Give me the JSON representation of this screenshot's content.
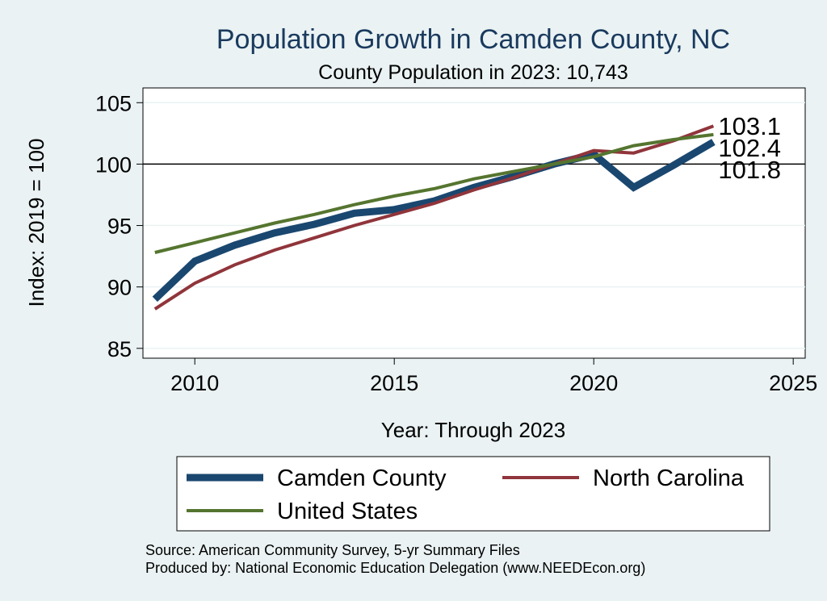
{
  "chart_data": {
    "type": "line",
    "title": "Population Growth in Camden County, NC",
    "subtitle": "County Population in 2023: 10,743",
    "xlabel": "Year: Through 2023",
    "ylabel": "Index: 2019 = 100",
    "xlim": [
      2008.7,
      2025.3
    ],
    "ylim": [
      84.2,
      106.2
    ],
    "xticks": [
      2010,
      2015,
      2020,
      2025
    ],
    "yticks": [
      85,
      90,
      95,
      100,
      105
    ],
    "reference_line": 100,
    "grid": true,
    "legend_position": "bottom",
    "x": [
      2009,
      2010,
      2011,
      2012,
      2013,
      2014,
      2015,
      2016,
      2017,
      2018,
      2019,
      2020,
      2021,
      2022,
      2023
    ],
    "series": [
      {
        "name": "Camden  County",
        "color": "#1a476f",
        "values": [
          89.0,
          92.1,
          93.4,
          94.4,
          95.1,
          96.0,
          96.3,
          97.0,
          98.1,
          99.0,
          100.0,
          100.8,
          98.1,
          99.9,
          101.8
        ],
        "end_label": "101.8"
      },
      {
        "name": "North Carolina",
        "color": "#90353b",
        "values": [
          88.2,
          90.3,
          91.8,
          93.0,
          94.0,
          95.0,
          95.9,
          96.8,
          97.9,
          98.9,
          100.0,
          101.1,
          100.9,
          101.9,
          103.1
        ],
        "end_label": "103.1"
      },
      {
        "name": "United States",
        "color": "#55752f",
        "values": [
          92.8,
          93.6,
          94.4,
          95.2,
          95.9,
          96.7,
          97.4,
          98.0,
          98.8,
          99.4,
          100.0,
          100.6,
          101.5,
          102.0,
          102.4
        ],
        "end_label": "102.4"
      }
    ]
  },
  "footer": {
    "source": "Source: American Community Survey, 5-yr Summary Files",
    "produced_by": "Produced by: National Economic Education Delegation (www.NEEDEcon.org)"
  }
}
